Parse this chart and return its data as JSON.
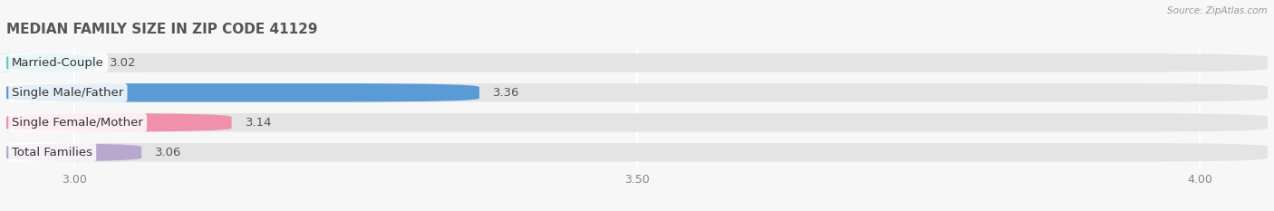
{
  "title": "MEDIAN FAMILY SIZE IN ZIP CODE 41129",
  "source": "Source: ZipAtlas.com",
  "categories": [
    "Married-Couple",
    "Single Male/Father",
    "Single Female/Mother",
    "Total Families"
  ],
  "values": [
    3.02,
    3.36,
    3.14,
    3.06
  ],
  "bar_colors": [
    "#63cac3",
    "#5b9bd5",
    "#f090aa",
    "#b8a8ce"
  ],
  "background_color": "#f7f7f7",
  "bar_bg_color": "#e4e4e4",
  "xlim_min": 2.94,
  "xlim_max": 4.06,
  "xticks": [
    3.0,
    3.5,
    4.0
  ],
  "bar_height": 0.62,
  "label_fontsize": 9.5,
  "title_fontsize": 11,
  "value_fontsize": 9.5,
  "tick_fontsize": 9
}
